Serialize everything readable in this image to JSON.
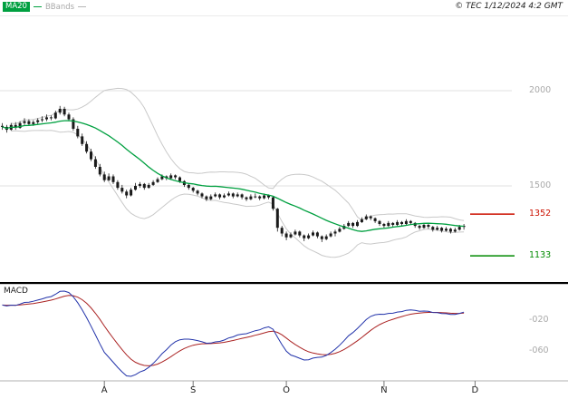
{
  "header": {
    "ma_label": "MA20",
    "bbands_label": "BBands",
    "copyright": "© TEC 1/12/2024 4:2 GMT"
  },
  "price_axis": {
    "gridlines": [
      {
        "text": "2000",
        "value": 2000
      },
      {
        "text": "1500",
        "value": 1500
      }
    ],
    "levels": [
      {
        "text": "1352",
        "value": 1352,
        "color": "#cc1100"
      },
      {
        "text": "1133",
        "value": 1133,
        "color": "#008a00"
      }
    ]
  },
  "colors": {
    "ma20": "#00a040",
    "bbands": "#c9c9c9",
    "candle": "#1a1a1a",
    "grid": "#e0e0e0",
    "macd": "#2233aa",
    "signal": "#aa2222",
    "separator": "#000000",
    "axis": "#b0b0b0",
    "tick": "#777777"
  },
  "chart_data": [
    {
      "type": "candlestick",
      "name": "price",
      "ylim_approx": [
        1000,
        2350
      ],
      "gridline_values": [
        2000,
        1500
      ],
      "level_lines": [
        1352,
        1133
      ],
      "overlays": [
        {
          "name": "MA20",
          "kind": "sma",
          "window": 20
        },
        {
          "name": "BBands",
          "kind": "bollinger",
          "window": 20,
          "mult": 2
        }
      ],
      "month_ticks": [
        {
          "label": "A",
          "index": 23
        },
        {
          "label": "S",
          "index": 43
        },
        {
          "label": "O",
          "index": 64
        },
        {
          "label": "N",
          "index": 86
        },
        {
          "label": "D",
          "index": 106.5
        }
      ],
      "candles": [
        [
          1815,
          1830,
          1795,
          1810
        ],
        [
          1810,
          1820,
          1780,
          1795
        ],
        [
          1795,
          1830,
          1790,
          1820
        ],
        [
          1820,
          1835,
          1795,
          1805
        ],
        [
          1805,
          1840,
          1800,
          1830
        ],
        [
          1830,
          1855,
          1820,
          1840
        ],
        [
          1840,
          1850,
          1815,
          1825
        ],
        [
          1825,
          1845,
          1815,
          1835
        ],
        [
          1835,
          1855,
          1825,
          1845
        ],
        [
          1845,
          1865,
          1835,
          1850
        ],
        [
          1850,
          1875,
          1840,
          1860
        ],
        [
          1860,
          1870,
          1845,
          1855
        ],
        [
          1855,
          1895,
          1850,
          1885
        ],
        [
          1885,
          1920,
          1875,
          1905
        ],
        [
          1905,
          1915,
          1865,
          1875
        ],
        [
          1875,
          1885,
          1840,
          1850
        ],
        [
          1850,
          1860,
          1790,
          1800
        ],
        [
          1800,
          1815,
          1750,
          1760
        ],
        [
          1760,
          1775,
          1710,
          1720
        ],
        [
          1720,
          1735,
          1670,
          1680
        ],
        [
          1680,
          1695,
          1630,
          1640
        ],
        [
          1640,
          1655,
          1590,
          1600
        ],
        [
          1600,
          1615,
          1550,
          1560
        ],
        [
          1560,
          1575,
          1520,
          1530
        ],
        [
          1530,
          1565,
          1525,
          1550
        ],
        [
          1550,
          1560,
          1510,
          1520
        ],
        [
          1520,
          1530,
          1480,
          1490
        ],
        [
          1490,
          1505,
          1460,
          1470
        ],
        [
          1470,
          1480,
          1435,
          1450
        ],
        [
          1450,
          1490,
          1445,
          1480
        ],
        [
          1480,
          1515,
          1475,
          1500
        ],
        [
          1500,
          1520,
          1490,
          1510
        ],
        [
          1510,
          1515,
          1480,
          1490
        ],
        [
          1490,
          1515,
          1485,
          1505
        ],
        [
          1505,
          1530,
          1500,
          1520
        ],
        [
          1520,
          1545,
          1515,
          1535
        ],
        [
          1535,
          1560,
          1530,
          1550
        ],
        [
          1550,
          1555,
          1530,
          1540
        ],
        [
          1540,
          1565,
          1535,
          1555
        ],
        [
          1555,
          1560,
          1535,
          1545
        ],
        [
          1545,
          1550,
          1515,
          1525
        ],
        [
          1525,
          1530,
          1495,
          1505
        ],
        [
          1505,
          1510,
          1480,
          1490
        ],
        [
          1490,
          1495,
          1465,
          1475
        ],
        [
          1475,
          1480,
          1450,
          1460
        ],
        [
          1460,
          1465,
          1435,
          1445
        ],
        [
          1445,
          1450,
          1420,
          1430
        ],
        [
          1430,
          1455,
          1425,
          1445
        ],
        [
          1445,
          1465,
          1440,
          1455
        ],
        [
          1455,
          1460,
          1430,
          1440
        ],
        [
          1440,
          1460,
          1435,
          1450
        ],
        [
          1450,
          1470,
          1445,
          1460
        ],
        [
          1460,
          1465,
          1435,
          1445
        ],
        [
          1445,
          1465,
          1440,
          1455
        ],
        [
          1455,
          1460,
          1430,
          1440
        ],
        [
          1440,
          1445,
          1420,
          1430
        ],
        [
          1430,
          1455,
          1425,
          1445
        ],
        [
          1445,
          1460,
          1435,
          1445
        ],
        [
          1445,
          1450,
          1425,
          1435
        ],
        [
          1435,
          1460,
          1430,
          1450
        ],
        [
          1450,
          1455,
          1430,
          1440
        ],
        [
          1440,
          1445,
          1370,
          1380
        ],
        [
          1380,
          1385,
          1260,
          1280
        ],
        [
          1280,
          1290,
          1235,
          1250
        ],
        [
          1250,
          1260,
          1215,
          1230
        ],
        [
          1230,
          1255,
          1225,
          1245
        ],
        [
          1245,
          1270,
          1240,
          1260
        ],
        [
          1260,
          1265,
          1230,
          1240
        ],
        [
          1240,
          1245,
          1210,
          1225
        ],
        [
          1225,
          1250,
          1220,
          1240
        ],
        [
          1240,
          1265,
          1235,
          1255
        ],
        [
          1255,
          1260,
          1225,
          1235
        ],
        [
          1235,
          1240,
          1205,
          1220
        ],
        [
          1220,
          1245,
          1215,
          1235
        ],
        [
          1235,
          1260,
          1230,
          1250
        ],
        [
          1250,
          1270,
          1235,
          1260
        ],
        [
          1260,
          1285,
          1255,
          1275
        ],
        [
          1275,
          1300,
          1270,
          1290
        ],
        [
          1290,
          1315,
          1285,
          1305
        ],
        [
          1305,
          1310,
          1280,
          1290
        ],
        [
          1290,
          1320,
          1285,
          1310
        ],
        [
          1310,
          1335,
          1305,
          1325
        ],
        [
          1325,
          1350,
          1320,
          1340
        ],
        [
          1340,
          1345,
          1320,
          1330
        ],
        [
          1330,
          1335,
          1305,
          1315
        ],
        [
          1315,
          1320,
          1290,
          1300
        ],
        [
          1300,
          1305,
          1280,
          1290
        ],
        [
          1290,
          1315,
          1285,
          1305
        ],
        [
          1305,
          1310,
          1285,
          1295
        ],
        [
          1295,
          1320,
          1290,
          1310
        ],
        [
          1310,
          1315,
          1290,
          1300
        ],
        [
          1300,
          1325,
          1295,
          1315
        ],
        [
          1315,
          1320,
          1295,
          1305
        ],
        [
          1305,
          1310,
          1280,
          1290
        ],
        [
          1290,
          1295,
          1270,
          1280
        ],
        [
          1280,
          1305,
          1275,
          1295
        ],
        [
          1295,
          1300,
          1275,
          1285
        ],
        [
          1285,
          1290,
          1260,
          1270
        ],
        [
          1270,
          1290,
          1265,
          1280
        ],
        [
          1280,
          1285,
          1255,
          1265
        ],
        [
          1265,
          1285,
          1260,
          1275
        ],
        [
          1275,
          1280,
          1250,
          1260
        ],
        [
          1260,
          1280,
          1255,
          1270
        ],
        [
          1270,
          1295,
          1265,
          1285
        ],
        [
          1285,
          1300,
          1270,
          1290
        ]
      ]
    },
    {
      "type": "line",
      "name": "MACD",
      "series": [
        {
          "name": "MACD",
          "derive": "ema12-ema26 of closes",
          "color": "#2233aa"
        },
        {
          "name": "signal",
          "derive": "ema9 of MACD",
          "color": "#aa2222"
        }
      ],
      "axis_labels": [
        {
          "text": "-020",
          "value": -20
        },
        {
          "text": "-060",
          "value": -60
        }
      ]
    }
  ]
}
